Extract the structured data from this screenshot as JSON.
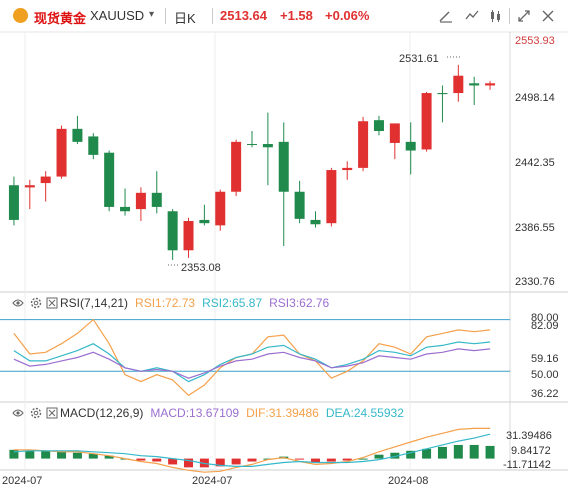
{
  "toolbar": {
    "symbol_name": "现货黄金",
    "symbol_code": "XAUUSD",
    "period": "日K",
    "last_price": "2513.64",
    "change": "+1.58",
    "change_pct": "+0.06%"
  },
  "main_chart": {
    "y_axis_labels": [
      "2553.93",
      "2498.14",
      "2442.35",
      "2386.55",
      "2330.76"
    ],
    "high_label": "2531.61",
    "low_label": "2353.08"
  },
  "rsi": {
    "title": "RSI(7,14,21)",
    "rsi1": "RSI1:72.73",
    "rsi2": "RSI2:65.87",
    "rsi3": "RSI3:62.76",
    "y_labels": [
      "80.00",
      "82.09",
      "59.16",
      "50.00",
      "36.22"
    ],
    "colors": {
      "rsi1": "#f5a04a",
      "rsi2": "#35b8c9",
      "rsi3": "#9b6fd0"
    }
  },
  "macd": {
    "title": "MACD(12,26,9)",
    "macd": "MACD:13.67109",
    "dif": "DIF:31.39486",
    "dea": "DEA:24.55932",
    "y_labels": [
      "31.39486",
      "9.84172",
      "-11.71142"
    ],
    "colors": {
      "macd": "#9b6fd0",
      "dif": "#f5a04a",
      "dea": "#35b8c9"
    }
  },
  "x_axis_labels": [
    "2024-07",
    "2024-07",
    "2024-08"
  ],
  "chart_data": {
    "type": "candlestick",
    "up_color": "#e03030",
    "down_color": "#1f8a4c",
    "candles": [
      {
        "o": 2388,
        "h": 2428,
        "l": 2383,
        "c": 2420,
        "d": "dn"
      },
      {
        "o": 2418,
        "h": 2425,
        "l": 2398,
        "c": 2420,
        "d": "up"
      },
      {
        "o": 2422,
        "h": 2433,
        "l": 2405,
        "c": 2428,
        "d": "up"
      },
      {
        "o": 2428,
        "h": 2475,
        "l": 2426,
        "c": 2472,
        "d": "up"
      },
      {
        "o": 2472,
        "h": 2484,
        "l": 2458,
        "c": 2460,
        "d": "dn"
      },
      {
        "o": 2465,
        "h": 2468,
        "l": 2444,
        "c": 2448,
        "d": "dn"
      },
      {
        "o": 2450,
        "h": 2452,
        "l": 2396,
        "c": 2400,
        "d": "dn"
      },
      {
        "o": 2400,
        "h": 2417,
        "l": 2392,
        "c": 2396,
        "d": "dn"
      },
      {
        "o": 2398,
        "h": 2418,
        "l": 2387,
        "c": 2413,
        "d": "up"
      },
      {
        "o": 2413,
        "h": 2433,
        "l": 2394,
        "c": 2400,
        "d": "dn"
      },
      {
        "o": 2396,
        "h": 2398,
        "l": 2351,
        "c": 2360,
        "d": "dn"
      },
      {
        "o": 2360,
        "h": 2390,
        "l": 2353,
        "c": 2387,
        "d": "up"
      },
      {
        "o": 2388,
        "h": 2402,
        "l": 2383,
        "c": 2385,
        "d": "dn"
      },
      {
        "o": 2383,
        "h": 2416,
        "l": 2378,
        "c": 2414,
        "d": "up"
      },
      {
        "o": 2414,
        "h": 2462,
        "l": 2410,
        "c": 2460,
        "d": "up"
      },
      {
        "o": 2458,
        "h": 2470,
        "l": 2455,
        "c": 2458,
        "d": "dn"
      },
      {
        "o": 2458,
        "h": 2487,
        "l": 2420,
        "c": 2455,
        "d": "dn"
      },
      {
        "o": 2460,
        "h": 2478,
        "l": 2364,
        "c": 2414,
        "d": "dn"
      },
      {
        "o": 2414,
        "h": 2424,
        "l": 2385,
        "c": 2389,
        "d": "dn"
      },
      {
        "o": 2388,
        "h": 2396,
        "l": 2381,
        "c": 2384,
        "d": "dn"
      },
      {
        "o": 2385,
        "h": 2436,
        "l": 2382,
        "c": 2434,
        "d": "up"
      },
      {
        "o": 2434,
        "h": 2442,
        "l": 2425,
        "c": 2436,
        "d": "up"
      },
      {
        "o": 2436,
        "h": 2483,
        "l": 2433,
        "c": 2479,
        "d": "up"
      },
      {
        "o": 2480,
        "h": 2484,
        "l": 2466,
        "c": 2470,
        "d": "dn"
      },
      {
        "o": 2459,
        "h": 2477,
        "l": 2444,
        "c": 2477,
        "d": "up"
      },
      {
        "o": 2460,
        "h": 2478,
        "l": 2430,
        "c": 2452,
        "d": "dn"
      },
      {
        "o": 2453,
        "h": 2506,
        "l": 2451,
        "c": 2505,
        "d": "up"
      },
      {
        "o": 2505,
        "h": 2512,
        "l": 2478,
        "c": 2504,
        "d": "dn"
      },
      {
        "o": 2505,
        "h": 2531,
        "l": 2497,
        "c": 2521,
        "d": "up"
      },
      {
        "o": 2514,
        "h": 2520,
        "l": 2494,
        "c": 2512,
        "d": "dn"
      },
      {
        "o": 2512,
        "h": 2516,
        "l": 2508,
        "c": 2514,
        "d": "up"
      }
    ],
    "rsi1": [
      72,
      60,
      61,
      66,
      72,
      80,
      66,
      48,
      44,
      48,
      45,
      36,
      42,
      52,
      58,
      60,
      70,
      71,
      60,
      56,
      46,
      50,
      56,
      66,
      64,
      60,
      70,
      72,
      74,
      73,
      74
    ],
    "rsi2": [
      62,
      56,
      56,
      59,
      62,
      66,
      60,
      52,
      50,
      52,
      50,
      44,
      48,
      54,
      58,
      60,
      64,
      65,
      60,
      57,
      52,
      54,
      57,
      62,
      61,
      59,
      64,
      65,
      67,
      66,
      67
    ],
    "rsi3": [
      57,
      53,
      54,
      56,
      58,
      61,
      57,
      52,
      50,
      51,
      50,
      46,
      49,
      53,
      56,
      57,
      60,
      61,
      58,
      56,
      52,
      53,
      55,
      59,
      58,
      57,
      60,
      61,
      63,
      62,
      63
    ],
    "macd_hist": [
      9,
      8,
      8,
      7,
      6,
      5,
      3,
      0,
      -2,
      -3,
      -6,
      -9,
      -9,
      -8,
      -6,
      -3,
      0,
      2,
      -1,
      -4,
      -3,
      -2,
      0,
      4,
      6,
      8,
      10,
      12,
      14,
      14,
      13
    ],
    "dif": [
      9,
      9,
      8,
      7,
      7,
      5,
      3,
      0,
      -3,
      -5,
      -9,
      -12,
      -14,
      -13,
      -9,
      -6,
      -1,
      1,
      -3,
      -6,
      -5,
      -3,
      1,
      7,
      12,
      17,
      22,
      26,
      30,
      31,
      31
    ],
    "dea": [
      7,
      8,
      8,
      8,
      8,
      7,
      6,
      5,
      3,
      2,
      0,
      -2,
      -5,
      -7,
      -8,
      -8,
      -6,
      -4,
      -3,
      -4,
      -4,
      -4,
      -3,
      -1,
      2,
      6,
      10,
      14,
      18,
      21,
      25
    ]
  }
}
